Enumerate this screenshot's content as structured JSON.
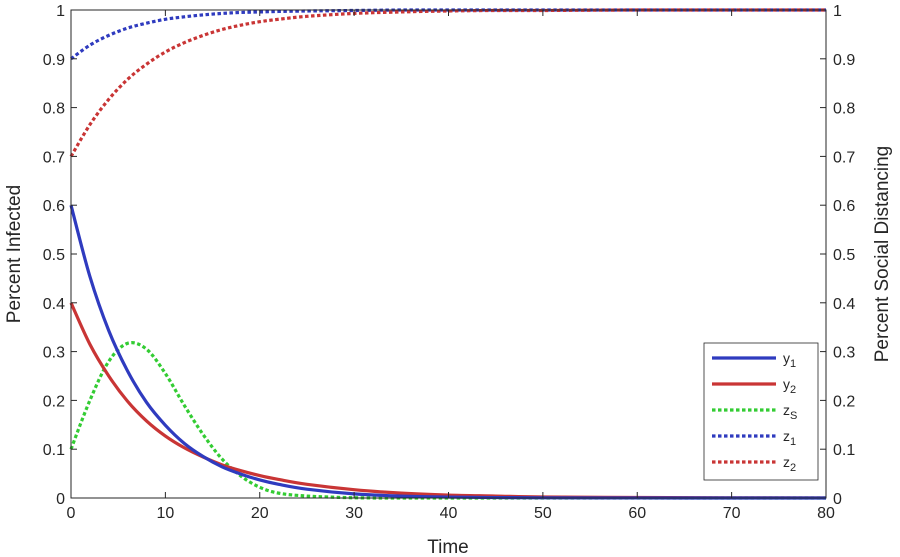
{
  "chart_data": {
    "type": "line",
    "xlabel": "Time",
    "ylabel_left": "Percent Infected",
    "ylabel_right": "Percent Social Distancing",
    "xlim": [
      0,
      80
    ],
    "ylim_left": [
      0,
      1
    ],
    "ylim_right": [
      0,
      1
    ],
    "xticks": [
      "0",
      "10",
      "20",
      "30",
      "40",
      "50",
      "60",
      "70",
      "80"
    ],
    "yticks_left": [
      "0",
      "0.1",
      "0.2",
      "0.3",
      "0.4",
      "0.5",
      "0.6",
      "0.7",
      "0.8",
      "0.9",
      "1"
    ],
    "yticks_right": [
      "0",
      "0.1",
      "0.2",
      "0.3",
      "0.4",
      "0.5",
      "0.6",
      "0.7",
      "0.8",
      "0.9",
      "1"
    ],
    "grid": false,
    "legend_position": "bottom-right",
    "x": [
      0,
      2,
      4,
      6,
      8,
      10,
      12,
      14,
      16,
      18,
      20,
      22,
      25,
      30,
      35,
      40,
      45,
      50,
      60,
      70,
      80
    ],
    "series": [
      {
        "name": "y",
        "subscript": "1",
        "axis": "left",
        "style": "solid",
        "color": "#2f3bbf",
        "values": [
          0.6,
          0.454,
          0.343,
          0.26,
          0.196,
          0.149,
          0.112,
          0.085,
          0.064,
          0.049,
          0.037,
          0.028,
          0.018,
          0.0084,
          0.004,
          0.0019,
          0.0009,
          0.0004,
          0.0001,
          0.0,
          0.0
        ]
      },
      {
        "name": "y",
        "subscript": "2",
        "axis": "left",
        "style": "solid",
        "color": "#c93535",
        "values": [
          0.4,
          0.315,
          0.25,
          0.198,
          0.158,
          0.127,
          0.103,
          0.084,
          0.068,
          0.056,
          0.046,
          0.038,
          0.028,
          0.017,
          0.01,
          0.006,
          0.004,
          0.002,
          0.001,
          0.0003,
          0.0001
        ]
      },
      {
        "name": "z",
        "subscript": "S",
        "axis": "left",
        "style": "dotted",
        "color": "#33cc33",
        "values": [
          0.1,
          0.2,
          0.28,
          0.317,
          0.305,
          0.255,
          0.19,
          0.13,
          0.08,
          0.045,
          0.022,
          0.01,
          0.004,
          0.0005,
          0.0,
          0.0,
          0.0,
          0.0,
          0.0,
          0.0,
          0.0
        ]
      },
      {
        "name": "z",
        "subscript": "1",
        "axis": "right",
        "style": "dotted",
        "color": "#2f3bbf",
        "values": [
          0.9,
          0.928,
          0.948,
          0.963,
          0.973,
          0.981,
          0.986,
          0.99,
          0.993,
          0.995,
          0.996,
          0.997,
          0.998,
          0.999,
          1.0,
          1.0,
          1.0,
          1.0,
          1.0,
          1.0,
          1.0
        ]
      },
      {
        "name": "z",
        "subscript": "2",
        "axis": "right",
        "style": "dotted",
        "color": "#c93535",
        "values": [
          0.7,
          0.765,
          0.817,
          0.858,
          0.889,
          0.914,
          0.933,
          0.948,
          0.96,
          0.969,
          0.976,
          0.981,
          0.987,
          0.993,
          0.996,
          0.998,
          0.999,
          0.999,
          1.0,
          1.0,
          1.0
        ]
      }
    ]
  }
}
